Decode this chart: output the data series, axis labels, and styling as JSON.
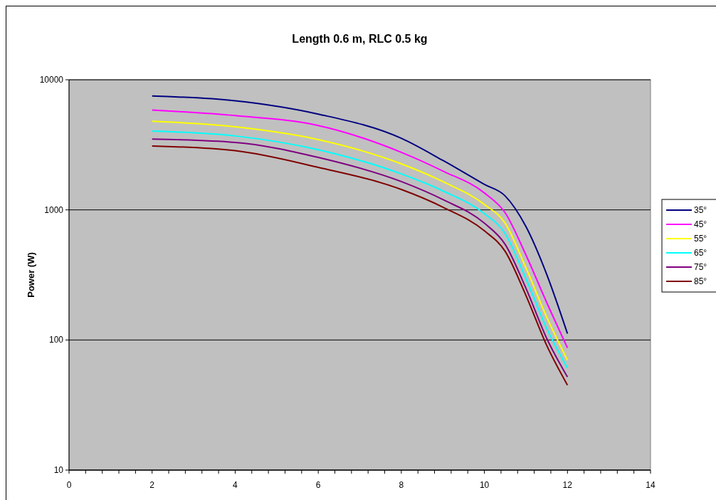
{
  "chart_data": {
    "type": "line",
    "title": "Length 0.6 m, RLC  0.5 kg",
    "ylabel": "Power (W)",
    "log": "y",
    "grid": "y",
    "legend": "right",
    "marker": "none",
    "line_style": "solid",
    "x": [
      2,
      4,
      6,
      8,
      9,
      10,
      10.5,
      11,
      11.5,
      12
    ],
    "xlim": [
      0,
      14
    ],
    "xticks": [
      0,
      {
        "value": 0.4,
        "label": null
      },
      {
        "value": 0.8,
        "label": null
      },
      {
        "value": 1.2,
        "label": null
      },
      {
        "value": 1.6,
        "label": null
      },
      2,
      {
        "value": 2.4,
        "label": null
      },
      {
        "value": 2.8,
        "label": null
      },
      {
        "value": 3.2,
        "label": null
      },
      {
        "value": 3.6,
        "label": null
      },
      4,
      {
        "value": 4.4,
        "label": null
      },
      {
        "value": 4.8,
        "label": null
      },
      {
        "value": 5.2,
        "label": null
      },
      {
        "value": 5.6,
        "label": null
      },
      6,
      {
        "value": 6.4,
        "label": null
      },
      {
        "value": 6.8,
        "label": null
      },
      {
        "value": 7.2,
        "label": null
      },
      {
        "value": 7.6,
        "label": null
      },
      8,
      {
        "value": 8.4,
        "label": null
      },
      {
        "value": 8.8,
        "label": null
      },
      {
        "value": 9.2,
        "label": null
      },
      {
        "value": 9.6,
        "label": null
      },
      10,
      {
        "value": 10.4,
        "label": null
      },
      {
        "value": 10.8,
        "label": null
      },
      {
        "value": 11.2,
        "label": null
      },
      {
        "value": 11.6,
        "label": null
      },
      12,
      {
        "value": 12.4,
        "label": null
      },
      {
        "value": 12.8,
        "label": null
      },
      {
        "value": 13.2,
        "label": null
      },
      {
        "value": 13.6,
        "label": null
      },
      14
    ],
    "ylim": [
      10,
      10000
    ],
    "yticks": [
      10,
      100,
      1000,
      10000
    ],
    "series": [
      {
        "name": "35°",
        "color": "#000080",
        "values": [
          7500,
          6900,
          5450,
          3550,
          2400,
          1570,
          1280,
          745,
          320,
          112
        ]
      },
      {
        "name": "45°",
        "color": "#ff00ff",
        "values": [
          5850,
          5300,
          4450,
          2770,
          1990,
          1350,
          950,
          450,
          194,
          87
        ]
      },
      {
        "name": "55°",
        "color": "#ffff00",
        "values": [
          4800,
          4350,
          3470,
          2260,
          1650,
          1100,
          790,
          359,
          150,
          70
        ]
      },
      {
        "name": "65°",
        "color": "#00ffff",
        "values": [
          4030,
          3700,
          2900,
          1890,
          1400,
          935,
          657,
          297,
          123,
          61
        ]
      },
      {
        "name": "75°",
        "color": "#800080",
        "values": [
          3500,
          3300,
          2530,
          1650,
          1200,
          790,
          543,
          250,
          103,
          52
        ]
      },
      {
        "name": "85°",
        "color": "#800000",
        "values": [
          3100,
          2850,
          2120,
          1435,
          1050,
          690,
          480,
          220,
          91,
          45
        ]
      }
    ]
  }
}
